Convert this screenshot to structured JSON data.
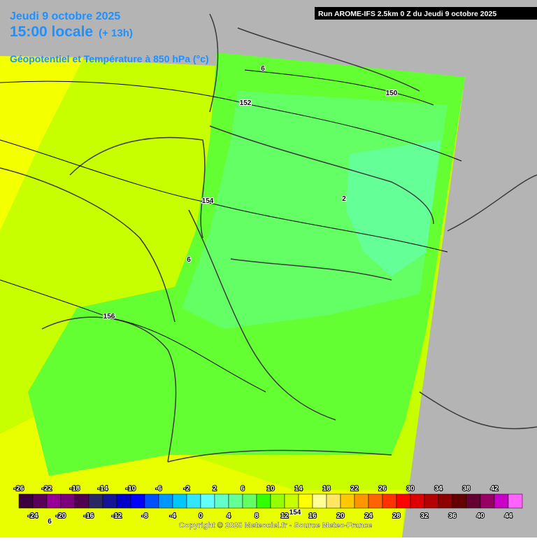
{
  "header": {
    "date": "Jeudi 9 octobre 2025",
    "time": "15:00 locale",
    "offset": "(+ 13h)",
    "parameter": "Géopotentiel et Température à 850 hPa (°c)",
    "run": "Run AROME-IFS 2.5km 0 Z du Jeudi 9 octobre 2025"
  },
  "contour_labels": [
    6,
    152,
    150,
    154,
    2,
    6,
    156,
    6,
    154
  ],
  "colorbar": {
    "values": [
      -26,
      -24,
      -22,
      -20,
      -18,
      -16,
      -14,
      -12,
      -10,
      -8,
      -6,
      -4,
      -2,
      0,
      2,
      4,
      6,
      8,
      10,
      12,
      14,
      16,
      18,
      20,
      22,
      24,
      26,
      28,
      30,
      32,
      34,
      36,
      38,
      40,
      42,
      44
    ],
    "colors": [
      "#3c003c",
      "#5a005a",
      "#960096",
      "#7b007b",
      "#500050",
      "#282864",
      "#141496",
      "#0000c8",
      "#0000ff",
      "#0050ff",
      "#0096ff",
      "#00c8ff",
      "#32e6ff",
      "#64ffff",
      "#64ffc8",
      "#64ff96",
      "#64ff64",
      "#32ff00",
      "#96ff00",
      "#c8ff00",
      "#ffff00",
      "#ffff96",
      "#ffe664",
      "#ffc800",
      "#ff9600",
      "#ff6400",
      "#ff3200",
      "#ff0000",
      "#dc0000",
      "#b40000",
      "#8c0000",
      "#640000",
      "#640032",
      "#960064",
      "#c800c8",
      "#ff64ff"
    ]
  },
  "copyright": "Copyright © 2025 Meteociel.fr - Source Meteo-France"
}
